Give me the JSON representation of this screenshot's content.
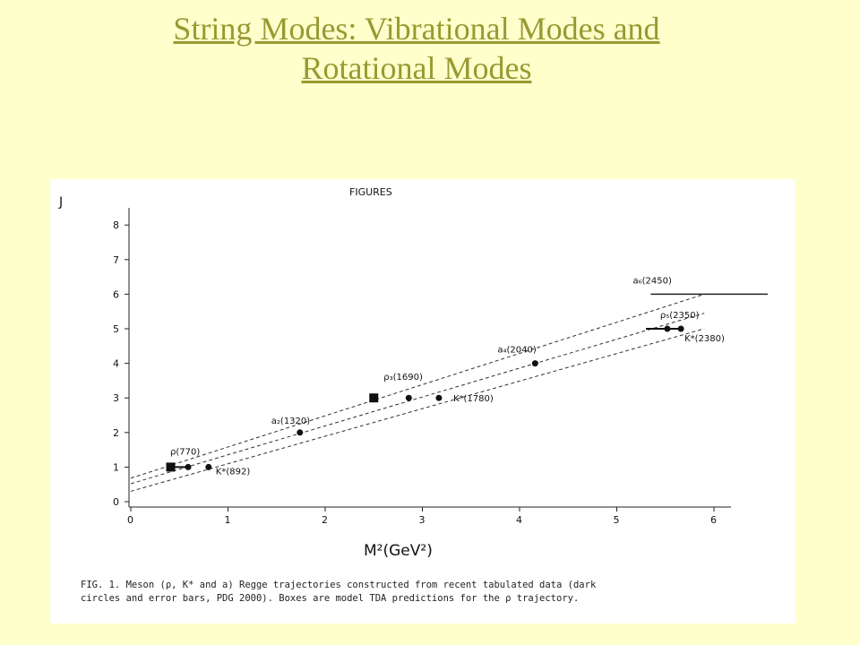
{
  "slide": {
    "title_line1": "String Modes: Vibrational Modes and",
    "title_line2": "Rotational Modes",
    "title_color": "#999933",
    "background_color": "#ffffcc"
  },
  "figure": {
    "header": "FIGURES",
    "caption_line1": "FIG. 1. Meson (ρ, K* and a) Regge trajectories constructed from recent tabulated data (dark",
    "caption_line2": "circles and error bars, PDG 2000). Boxes are model TDA predictions for the ρ trajectory."
  },
  "chart_data": {
    "type": "scatter",
    "title": "FIGURES",
    "xlabel": "M²(GeV²)",
    "ylabel": "J",
    "xlim": [
      0,
      6
    ],
    "ylim": [
      0,
      8
    ],
    "x_ticks": [
      0,
      1,
      2,
      3,
      4,
      5,
      6
    ],
    "y_ticks": [
      0,
      1,
      2,
      3,
      4,
      5,
      6,
      7,
      8
    ],
    "grid": false,
    "series": [
      {
        "name": "data",
        "marker": "circle",
        "points": [
          {
            "x": 0.59,
            "y": 1,
            "label": "ρ(770)"
          },
          {
            "x": 0.8,
            "y": 1,
            "label": "K*(892)"
          },
          {
            "x": 1.74,
            "y": 2,
            "label": "a₂(1320)"
          },
          {
            "x": 2.86,
            "y": 3,
            "label": "ρ₃(1690)"
          },
          {
            "x": 3.17,
            "y": 3,
            "label": "K*(1780)"
          },
          {
            "x": 4.16,
            "y": 4,
            "label": "a₄(2040)"
          },
          {
            "x": 5.52,
            "y": 5,
            "label": "ρ₅(2350)"
          },
          {
            "x": 5.66,
            "y": 5,
            "label": "K*(2380)"
          }
        ]
      },
      {
        "name": "TDA",
        "marker": "square",
        "points": [
          {
            "x": 0.41,
            "y": 1
          },
          {
            "x": 2.5,
            "y": 3
          }
        ]
      }
    ],
    "fit_lines": [
      {
        "x0": 0,
        "y0": 0.68,
        "x1": 5.9,
        "y1": 6.0
      },
      {
        "x0": 0,
        "y0": 0.52,
        "x1": 5.9,
        "y1": 5.45
      },
      {
        "x0": 0,
        "y0": 0.3,
        "x1": 5.9,
        "y1": 5.0
      }
    ],
    "error_bars": [
      {
        "x0": 0.41,
        "x1": 0.59,
        "y": 1
      },
      {
        "x0": 5.3,
        "x1": 5.66,
        "y": 5
      }
    ],
    "level_lines": [
      {
        "x0": 5.35,
        "x1": 6.0,
        "y": 6.0,
        "label": "a₆(2450)"
      }
    ],
    "annotations": [
      "ρ(770)",
      "K*(892)",
      "a₂(1320)",
      "ρ₃(1690)",
      "K*(1780)",
      "a₄(2040)",
      "ρ₅(2350)",
      "K*(2380)",
      "a₆(2450)"
    ]
  }
}
